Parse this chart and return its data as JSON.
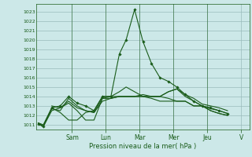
{
  "bg_color": "#cce8e8",
  "grid_color": "#99bbbb",
  "line_color": "#1a5c1a",
  "xlabel": "Pression niveau de la mer( hPa )",
  "ylim": [
    1010.5,
    1023.8
  ],
  "yticks": [
    1011,
    1012,
    1013,
    1014,
    1015,
    1016,
    1017,
    1018,
    1019,
    1020,
    1021,
    1022,
    1023
  ],
  "day_labels": [
    "Sam",
    "Lun",
    "Mar",
    "Mer",
    "Jeu",
    "V"
  ],
  "day_positions": [
    2.0,
    4.0,
    6.0,
    8.0,
    10.0,
    12.0
  ],
  "xlim": [
    -0.1,
    12.5
  ],
  "lines": [
    {
      "x": [
        0.0,
        0.3,
        0.8,
        1.3,
        1.8,
        2.3,
        2.8,
        3.3,
        3.8,
        4.3,
        4.8,
        5.2,
        5.7,
        6.2,
        6.7,
        7.2,
        7.7,
        8.2,
        8.7,
        9.2,
        9.7,
        10.2,
        10.7,
        11.2
      ],
      "y": [
        1011.1,
        1010.8,
        1012.8,
        1013.0,
        1014.0,
        1013.3,
        1013.0,
        1012.5,
        1014.0,
        1014.0,
        1018.5,
        1020.0,
        1023.2,
        1019.8,
        1017.5,
        1016.0,
        1015.6,
        1015.0,
        1014.2,
        1013.5,
        1013.0,
        1012.8,
        1012.5,
        1012.2
      ],
      "has_markers": true
    },
    {
      "x": [
        0.0,
        0.3,
        0.8,
        1.3,
        1.8,
        2.3,
        2.8,
        3.3,
        3.8,
        4.3,
        4.8,
        5.2,
        5.7,
        6.2,
        6.7,
        7.2,
        7.7,
        8.2,
        8.7,
        9.2,
        9.7,
        10.2,
        10.7,
        11.2
      ],
      "y": [
        1011.1,
        1010.8,
        1012.5,
        1012.8,
        1013.5,
        1012.8,
        1012.5,
        1012.3,
        1013.5,
        1013.8,
        1014.0,
        1014.0,
        1014.0,
        1014.0,
        1014.0,
        1014.0,
        1014.5,
        1014.8,
        1014.0,
        1013.5,
        1013.0,
        1012.5,
        1012.2,
        1012.0
      ],
      "has_markers": false
    },
    {
      "x": [
        0.0,
        0.3,
        0.8,
        1.3,
        1.8,
        2.3,
        2.8,
        3.3,
        3.8,
        4.3,
        4.8,
        5.2,
        5.7,
        6.2,
        6.7,
        7.2,
        7.7,
        8.2,
        8.7,
        9.2,
        9.7,
        10.2,
        10.7,
        11.2
      ],
      "y": [
        1011.2,
        1010.9,
        1012.7,
        1012.5,
        1013.8,
        1013.0,
        1012.5,
        1012.3,
        1013.8,
        1014.0,
        1014.5,
        1015.0,
        1014.5,
        1014.0,
        1013.8,
        1013.5,
        1013.5,
        1013.5,
        1013.5,
        1013.0,
        1013.0,
        1012.5,
        1012.2,
        1012.0
      ],
      "has_markers": false
    },
    {
      "x": [
        0.0,
        0.3,
        0.8,
        1.3,
        1.8,
        2.3,
        2.8,
        3.3,
        3.8,
        4.3,
        4.8,
        5.2,
        5.7,
        6.2,
        6.7,
        7.2,
        7.7,
        8.2,
        8.7,
        9.2,
        9.7,
        10.2,
        10.7,
        11.2
      ],
      "y": [
        1011.2,
        1011.0,
        1012.8,
        1012.3,
        1011.5,
        1011.5,
        1012.3,
        1012.5,
        1014.0,
        1014.0,
        1014.0,
        1014.0,
        1014.0,
        1014.0,
        1014.0,
        1014.0,
        1013.8,
        1013.5,
        1013.5,
        1013.0,
        1013.0,
        1012.7,
        1012.5,
        1012.2
      ],
      "has_markers": false
    },
    {
      "x": [
        0.8,
        1.3,
        1.8,
        2.3,
        2.8,
        3.3,
        3.8,
        4.3,
        4.8,
        5.2,
        5.7,
        6.2,
        6.7,
        7.2,
        7.7,
        8.2,
        8.7,
        9.2,
        9.7,
        10.2,
        10.7,
        11.2
      ],
      "y": [
        1013.0,
        1012.8,
        1013.3,
        1012.5,
        1011.5,
        1011.5,
        1013.8,
        1013.8,
        1014.0,
        1014.0,
        1014.0,
        1014.2,
        1014.0,
        1014.0,
        1014.5,
        1014.8,
        1014.2,
        1013.8,
        1013.2,
        1013.0,
        1012.8,
        1012.5
      ],
      "has_markers": false
    }
  ]
}
